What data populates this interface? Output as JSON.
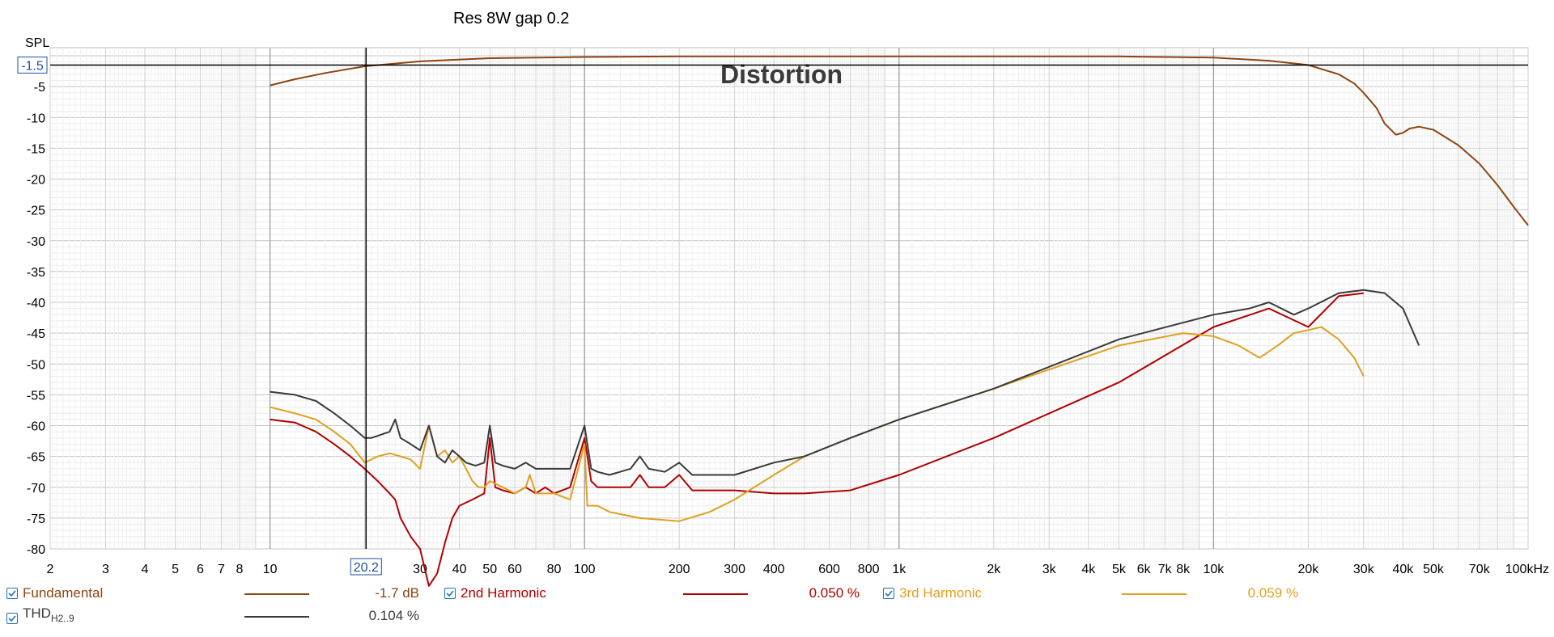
{
  "chart_data": {
    "type": "line",
    "title": "Res 8W gap 0.2",
    "watermark": "Distortion",
    "ylabel": "SPL",
    "xscale": "log",
    "xlim": [
      2,
      100000
    ],
    "ylim": [
      -80,
      0
    ],
    "grid": true,
    "x_tick_labels": [
      {
        "x": 2,
        "label": "2"
      },
      {
        "x": 3,
        "label": "3"
      },
      {
        "x": 4,
        "label": "4"
      },
      {
        "x": 5,
        "label": "5"
      },
      {
        "x": 6,
        "label": "6"
      },
      {
        "x": 7,
        "label": "7"
      },
      {
        "x": 8,
        "label": "8"
      },
      {
        "x": 10,
        "label": "10"
      },
      {
        "x": 30,
        "label": "30"
      },
      {
        "x": 40,
        "label": "40"
      },
      {
        "x": 50,
        "label": "50"
      },
      {
        "x": 60,
        "label": "60"
      },
      {
        "x": 80,
        "label": "80"
      },
      {
        "x": 100,
        "label": "100"
      },
      {
        "x": 200,
        "label": "200"
      },
      {
        "x": 300,
        "label": "300"
      },
      {
        "x": 400,
        "label": "400"
      },
      {
        "x": 600,
        "label": "600"
      },
      {
        "x": 800,
        "label": "800"
      },
      {
        "x": 1000,
        "label": "1k"
      },
      {
        "x": 2000,
        "label": "2k"
      },
      {
        "x": 3000,
        "label": "3k"
      },
      {
        "x": 4000,
        "label": "4k"
      },
      {
        "x": 5000,
        "label": "5k"
      },
      {
        "x": 6000,
        "label": "6k"
      },
      {
        "x": 7000,
        "label": "7k"
      },
      {
        "x": 8000,
        "label": "8k"
      },
      {
        "x": 10000,
        "label": "10k"
      },
      {
        "x": 20000,
        "label": "20k"
      },
      {
        "x": 30000,
        "label": "30k"
      },
      {
        "x": 40000,
        "label": "40k"
      },
      {
        "x": 50000,
        "label": "50k"
      },
      {
        "x": 70000,
        "label": "70k"
      },
      {
        "x": 100000,
        "label": "100kHz"
      }
    ],
    "y_tick_labels": [
      {
        "y": -5,
        "label": "-5"
      },
      {
        "y": -10,
        "label": "-10"
      },
      {
        "y": -15,
        "label": "-15"
      },
      {
        "y": -20,
        "label": "-20"
      },
      {
        "y": -25,
        "label": "-25"
      },
      {
        "y": -30,
        "label": "-30"
      },
      {
        "y": -35,
        "label": "-35"
      },
      {
        "y": -40,
        "label": "-40"
      },
      {
        "y": -45,
        "label": "-45"
      },
      {
        "y": -50,
        "label": "-50"
      },
      {
        "y": -55,
        "label": "-55"
      },
      {
        "y": -60,
        "label": "-60"
      },
      {
        "y": -65,
        "label": "-65"
      },
      {
        "y": -70,
        "label": "-70"
      },
      {
        "y": -75,
        "label": "-75"
      },
      {
        "y": -80,
        "label": "-80"
      }
    ],
    "cursor": {
      "x": 20.2,
      "x_label": "20.2",
      "y": -1.5,
      "y_label": "-1.5"
    },
    "axis_color": "#000000",
    "grid_color": "#cfcfcf",
    "series": [
      {
        "name": "Fundamental",
        "value": "-1.7 dB",
        "color": "#8b4513",
        "x": [
          10,
          12,
          15,
          20,
          30,
          50,
          100,
          200,
          500,
          1000,
          2000,
          5000,
          10000,
          15000,
          20000,
          25000,
          28000,
          30000,
          33000,
          35000,
          38000,
          40000,
          42000,
          45000,
          50000,
          60000,
          70000,
          80000,
          90000,
          100000
        ],
        "y": [
          -4.8,
          -3.8,
          -2.8,
          -1.7,
          -0.9,
          -0.4,
          -0.2,
          -0.1,
          -0.1,
          -0.1,
          -0.1,
          -0.1,
          -0.3,
          -0.8,
          -1.5,
          -3.0,
          -4.5,
          -6.0,
          -8.5,
          -11.0,
          -12.8,
          -12.5,
          -11.8,
          -11.5,
          -12.0,
          -14.5,
          -17.5,
          -21.0,
          -24.5,
          -27.5
        ]
      },
      {
        "name": "2nd Harmonic",
        "value": "0.050 %",
        "color": "#b00000",
        "x": [
          10,
          12,
          14,
          16,
          18,
          20,
          22,
          24,
          25,
          26,
          28,
          30,
          32,
          34,
          36,
          38,
          40,
          44,
          48,
          50,
          52,
          55,
          60,
          65,
          70,
          75,
          80,
          90,
          100,
          105,
          110,
          120,
          140,
          150,
          160,
          180,
          200,
          220,
          250,
          300,
          400,
          500,
          700,
          1000,
          2000,
          5000,
          10000,
          15000,
          20000,
          25000,
          30000
        ],
        "y": [
          -59,
          -59.5,
          -61,
          -63,
          -65,
          -67,
          -69,
          -71,
          -72,
          -75,
          -78,
          -80,
          -86,
          -84,
          -79,
          -75,
          -73,
          -72,
          -71,
          -62,
          -70,
          -70.5,
          -71,
          -70,
          -71,
          -70,
          -71,
          -70,
          -62,
          -69,
          -70,
          -70,
          -70,
          -68,
          -70,
          -70,
          -68,
          -70.5,
          -70.5,
          -70.5,
          -71,
          -71,
          -70.5,
          -68,
          -62,
          -53,
          -44,
          -41,
          -44,
          -39,
          -38.5
        ]
      },
      {
        "name": "3rd Harmonic",
        "value": "0.059 %",
        "color": "#e0a020",
        "x": [
          10,
          12,
          14,
          16,
          18,
          20,
          22,
          24,
          26,
          28,
          30,
          32,
          34,
          36,
          38,
          40,
          42,
          44,
          46,
          48,
          50,
          55,
          60,
          65,
          67,
          70,
          80,
          90,
          100,
          102,
          110,
          120,
          150,
          200,
          250,
          300,
          400,
          500,
          700,
          1000,
          2000,
          5000,
          8000,
          10000,
          12000,
          14000,
          16000,
          18000,
          20000,
          22000,
          25000,
          28000,
          30000
        ],
        "y": [
          -57,
          -58,
          -59,
          -61,
          -63,
          -66,
          -65,
          -64.5,
          -65,
          -65.5,
          -67,
          -60,
          -65,
          -64,
          -66,
          -65,
          -67,
          -69,
          -70,
          -70,
          -69,
          -70,
          -71,
          -70,
          -68,
          -71,
          -71,
          -72,
          -63,
          -73,
          -73,
          -74,
          -75,
          -75.5,
          -74,
          -72,
          -68,
          -65,
          -62,
          -59,
          -54,
          -47,
          -45,
          -45.5,
          -47,
          -49,
          -47,
          -45,
          -44.5,
          -44,
          -46,
          -49,
          -52
        ]
      },
      {
        "name": "THD",
        "name_sub": "H2..9",
        "value": "0.104 %",
        "color": "#3a3a3a",
        "x": [
          10,
          12,
          14,
          16,
          18,
          20,
          21,
          24,
          25,
          26,
          28,
          30,
          32,
          34,
          36,
          38,
          40,
          42,
          45,
          48,
          50,
          52,
          55,
          60,
          65,
          70,
          80,
          90,
          100,
          105,
          110,
          120,
          140,
          150,
          160,
          180,
          200,
          220,
          250,
          300,
          400,
          500,
          700,
          1000,
          2000,
          5000,
          10000,
          13000,
          15000,
          18000,
          20000,
          25000,
          30000,
          35000,
          40000,
          45000
        ],
        "y": [
          -54.5,
          -55,
          -56,
          -58,
          -60,
          -62,
          -62,
          -61,
          -59,
          -62,
          -63,
          -64,
          -60,
          -65,
          -66,
          -64,
          -65,
          -66,
          -66.5,
          -66,
          -60,
          -66,
          -66.5,
          -67,
          -66,
          -67,
          -67,
          -67,
          -60,
          -67,
          -67.5,
          -68,
          -67,
          -65,
          -67,
          -67.5,
          -66,
          -68,
          -68,
          -68,
          -66,
          -65,
          -62,
          -59,
          -54,
          -46,
          -42,
          -41,
          -40,
          -42,
          -41,
          -38.5,
          -38,
          -38.5,
          -41,
          -47
        ]
      }
    ]
  }
}
